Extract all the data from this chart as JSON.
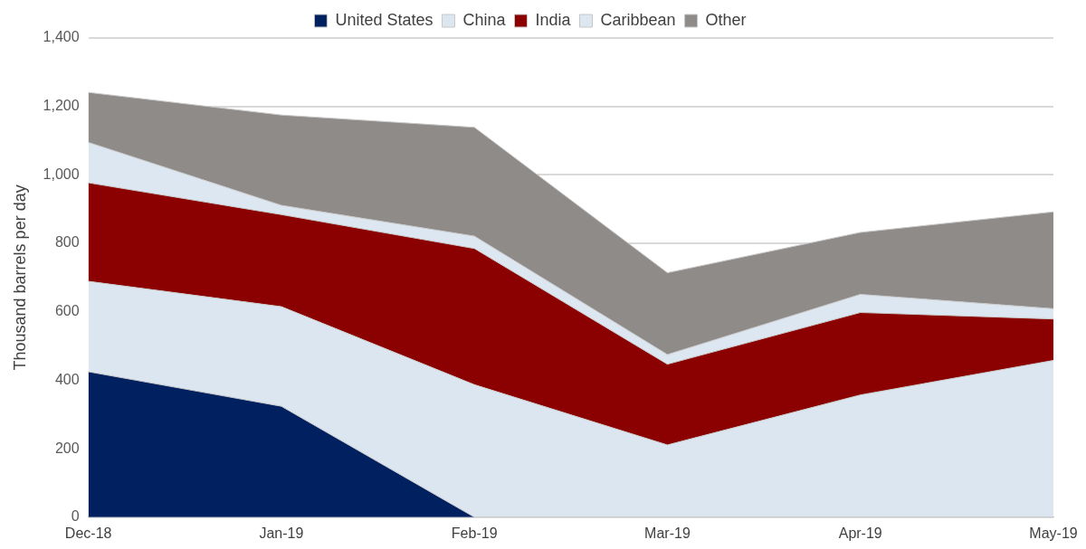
{
  "chart_data": {
    "type": "area",
    "stacked": true,
    "ylabel": "Thousand barrels per day",
    "categories": [
      "Dec-18",
      "Jan-19",
      "Feb-19",
      "Mar-19",
      "Apr-19",
      "May-19"
    ],
    "series": [
      {
        "name": "United States",
        "color": "#002060",
        "values": [
          425,
          324,
          0,
          0,
          0,
          0
        ]
      },
      {
        "name": "China",
        "color": "#dce6f1",
        "values": [
          264,
          291,
          387,
          211,
          357,
          458
        ]
      },
      {
        "name": "India",
        "color": "#8b0000",
        "values": [
          288,
          269,
          398,
          236,
          241,
          121
        ]
      },
      {
        "name": "Caribbean",
        "color": "#dde7f2",
        "values": [
          118,
          27,
          36,
          28,
          53,
          30
        ]
      },
      {
        "name": "Other",
        "color": "#8f8b89",
        "values": [
          146,
          264,
          318,
          239,
          181,
          283
        ]
      }
    ],
    "ylim": [
      0,
      1400
    ],
    "yticks": [
      0,
      200,
      400,
      600,
      800,
      {
        "value": 1000,
        "label": "1,000"
      },
      {
        "value": 1200,
        "label": "1,200"
      },
      {
        "value": 1400,
        "label": "1,400"
      }
    ],
    "grid": "y",
    "legend": "top"
  }
}
